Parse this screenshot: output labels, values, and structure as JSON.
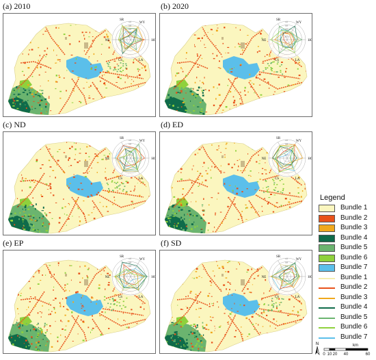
{
  "panels": [
    {
      "title": "(a) 2010"
    },
    {
      "title": "(b) 2020"
    },
    {
      "title": "(c) ND"
    },
    {
      "title": "(d) ED"
    },
    {
      "title": "(e) EP"
    },
    {
      "title": "(f) SD"
    }
  ],
  "radar_labels": {
    "sr": "SR",
    "wy": "WY",
    "hq": "HQ",
    "la": "LA",
    "cs": "CS",
    "ne": "NE"
  },
  "radar_ticks": [
    "1.0",
    "0.8",
    "0.6",
    "0.4",
    "0.2"
  ],
  "legend": {
    "title": "Legend",
    "area_items": [
      {
        "label": "Bundle 1",
        "color": "#fbf6bf"
      },
      {
        "label": "Bundle 2",
        "color": "#e8521a"
      },
      {
        "label": "Bundle 3",
        "color": "#f0a81c"
      },
      {
        "label": "Bundle 4",
        "color": "#0f6b4a"
      },
      {
        "label": "Bundle 5",
        "color": "#6bb46f"
      },
      {
        "label": "Bundle 6",
        "color": "#8fd13c"
      },
      {
        "label": "Bundle 7",
        "color": "#5bbfea"
      }
    ],
    "line_items": [
      {
        "label": "Bundle 1",
        "color": "#f5eeb0"
      },
      {
        "label": "Bundle 2",
        "color": "#e8521a"
      },
      {
        "label": "Bundle 3",
        "color": "#f0a81c"
      },
      {
        "label": "Bundle 4",
        "color": "#0f6b4a"
      },
      {
        "label": "Bundle 5",
        "color": "#6bb46f"
      },
      {
        "label": "Bundle 6",
        "color": "#8fd13c"
      },
      {
        "label": "Bundle 7",
        "color": "#5bbfea"
      }
    ]
  },
  "scale": {
    "north": "N",
    "ticks": [
      "0",
      "10",
      "20",
      "40",
      "60"
    ],
    "unit": "km"
  }
}
